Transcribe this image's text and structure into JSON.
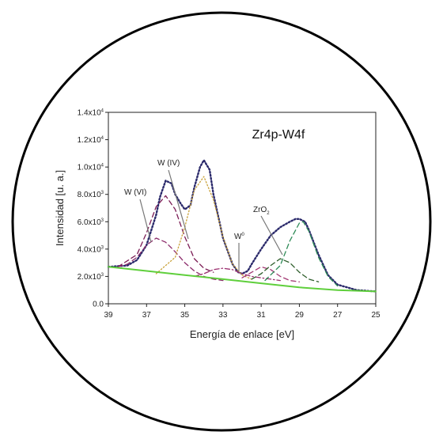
{
  "chart_data": {
    "type": "line",
    "title": "Zr4p-W4f",
    "xlabel": "Energía de enlace [eV]",
    "ylabel": "Intensidad [u. a.]",
    "xlim": [
      39,
      25
    ],
    "x_reversed": true,
    "ylim": [
      0,
      14000
    ],
    "x_ticks": [
      39,
      37,
      35,
      33,
      31,
      29,
      27,
      25
    ],
    "y_tick_labels": [
      {
        "mantissa": "0.0",
        "exp": ""
      },
      {
        "mantissa": "2.0x10",
        "exp": "3"
      },
      {
        "mantissa": "4.0x10",
        "exp": "3"
      },
      {
        "mantissa": "6.0x10",
        "exp": "3"
      },
      {
        "mantissa": "8.0x10",
        "exp": "3"
      },
      {
        "mantissa": "1.0x10",
        "exp": "4"
      },
      {
        "mantissa": "1.2x10",
        "exp": "4"
      },
      {
        "mantissa": "1.4x10",
        "exp": "4"
      }
    ],
    "y_tick_values": [
      0,
      2000,
      4000,
      6000,
      8000,
      10000,
      12000,
      14000
    ],
    "grid": false,
    "annotations": [
      {
        "label": "W (VI)",
        "sub": "",
        "sup": ""
      },
      {
        "label": "W (IV)",
        "sub": "",
        "sup": ""
      },
      {
        "label": "W",
        "sub": "",
        "sup": "0"
      },
      {
        "label": "ZrO",
        "sub": "2",
        "sup": ""
      }
    ],
    "series": [
      {
        "role": "envelope",
        "color": "#2b2a6b",
        "dash": "dotted",
        "x": [
          39.0,
          38.0,
          37.5,
          37.0,
          36.5,
          36.3,
          36.0,
          35.7,
          35.5,
          35.2,
          35.0,
          34.7,
          34.5,
          34.2,
          34.0,
          33.7,
          33.5,
          33.0,
          32.5,
          32.2,
          32.0,
          31.7,
          31.5,
          31.0,
          30.5,
          30.0,
          29.5,
          29.2,
          29.0,
          28.7,
          28.5,
          28.0,
          27.5,
          27.0,
          26.0,
          25.0
        ],
        "y": [
          2700,
          2800,
          3200,
          4300,
          6500,
          7800,
          9000,
          8800,
          8000,
          7300,
          6900,
          7200,
          8500,
          10000,
          10500,
          9800,
          8000,
          4800,
          2900,
          2300,
          2200,
          2400,
          2900,
          4000,
          5000,
          5600,
          6000,
          6200,
          6200,
          6000,
          5400,
          3600,
          2100,
          1400,
          1000,
          900
        ]
      },
      {
        "role": "W(VI) peak 1",
        "color": "#7b1c55",
        "dash": "dashed",
        "x": [
          38.5,
          37.5,
          37.0,
          36.5,
          36.0,
          35.5,
          35.0,
          34.5,
          34.0,
          33.5
        ],
        "y": [
          2700,
          3600,
          5200,
          7100,
          7900,
          6900,
          4900,
          3300,
          2600,
          2300
        ]
      },
      {
        "role": "W(VI) peak 2",
        "color": "#8b2a6a",
        "dash": "dashed",
        "x": [
          38.5,
          38.0,
          37.5,
          37.0,
          36.5,
          36.0,
          35.5,
          35.0,
          34.5,
          34.0,
          33.5,
          33.0
        ],
        "y": [
          2700,
          2900,
          3400,
          4300,
          4800,
          4500,
          3800,
          3000,
          2400,
          2000,
          1800,
          1700
        ]
      },
      {
        "role": "W(IV) peak",
        "color": "#c9a23b",
        "dash": "dotted",
        "x": [
          36.5,
          35.5,
          35.0,
          34.5,
          34.0,
          33.5,
          33.0,
          32.5,
          32.0,
          31.5
        ],
        "y": [
          2200,
          3400,
          5600,
          8300,
          9300,
          7600,
          4900,
          2900,
          2100,
          1800
        ]
      },
      {
        "role": "W(0) peak",
        "color": "#9a2d6e",
        "dash": "dashdot",
        "x": [
          34.5,
          34.0,
          33.5,
          33.0,
          32.5,
          32.0,
          31.5,
          31.0,
          30.5,
          30.0
        ],
        "y": [
          2000,
          2200,
          2500,
          2600,
          2500,
          2200,
          2000,
          1900,
          1800,
          1700
        ]
      },
      {
        "role": "W(0) peak 2",
        "color": "#a33a74",
        "dash": "dashed",
        "x": [
          32.0,
          31.5,
          31.0,
          30.5,
          30.0,
          29.5,
          29.0
        ],
        "y": [
          1900,
          2300,
          2700,
          2500,
          2000,
          1700,
          1600
        ]
      },
      {
        "role": "ZrO2 peak 1",
        "color": "#2d5d2a",
        "dash": "dashed",
        "x": [
          31.5,
          31.0,
          30.5,
          30.0,
          29.5,
          29.0,
          28.5,
          28.0
        ],
        "y": [
          1800,
          2200,
          2800,
          3300,
          3000,
          2300,
          1800,
          1600
        ]
      },
      {
        "role": "ZrO2 peak 2",
        "color": "#2e8b57",
        "dash": "dashed",
        "x": [
          30.8,
          30.0,
          29.5,
          29.0,
          28.8,
          28.5,
          28.0,
          27.5,
          27.0
        ],
        "y": [
          1700,
          2800,
          4600,
          5900,
          6000,
          5300,
          3400,
          2000,
          1300
        ]
      },
      {
        "role": "background",
        "color": "#5fcf3c",
        "dash": "solid",
        "x": [
          39.0,
          37.0,
          35.0,
          33.0,
          31.0,
          29.0,
          27.0,
          25.0
        ],
        "y": [
          2700,
          2400,
          2100,
          1800,
          1500,
          1200,
          1000,
          900
        ]
      }
    ]
  }
}
